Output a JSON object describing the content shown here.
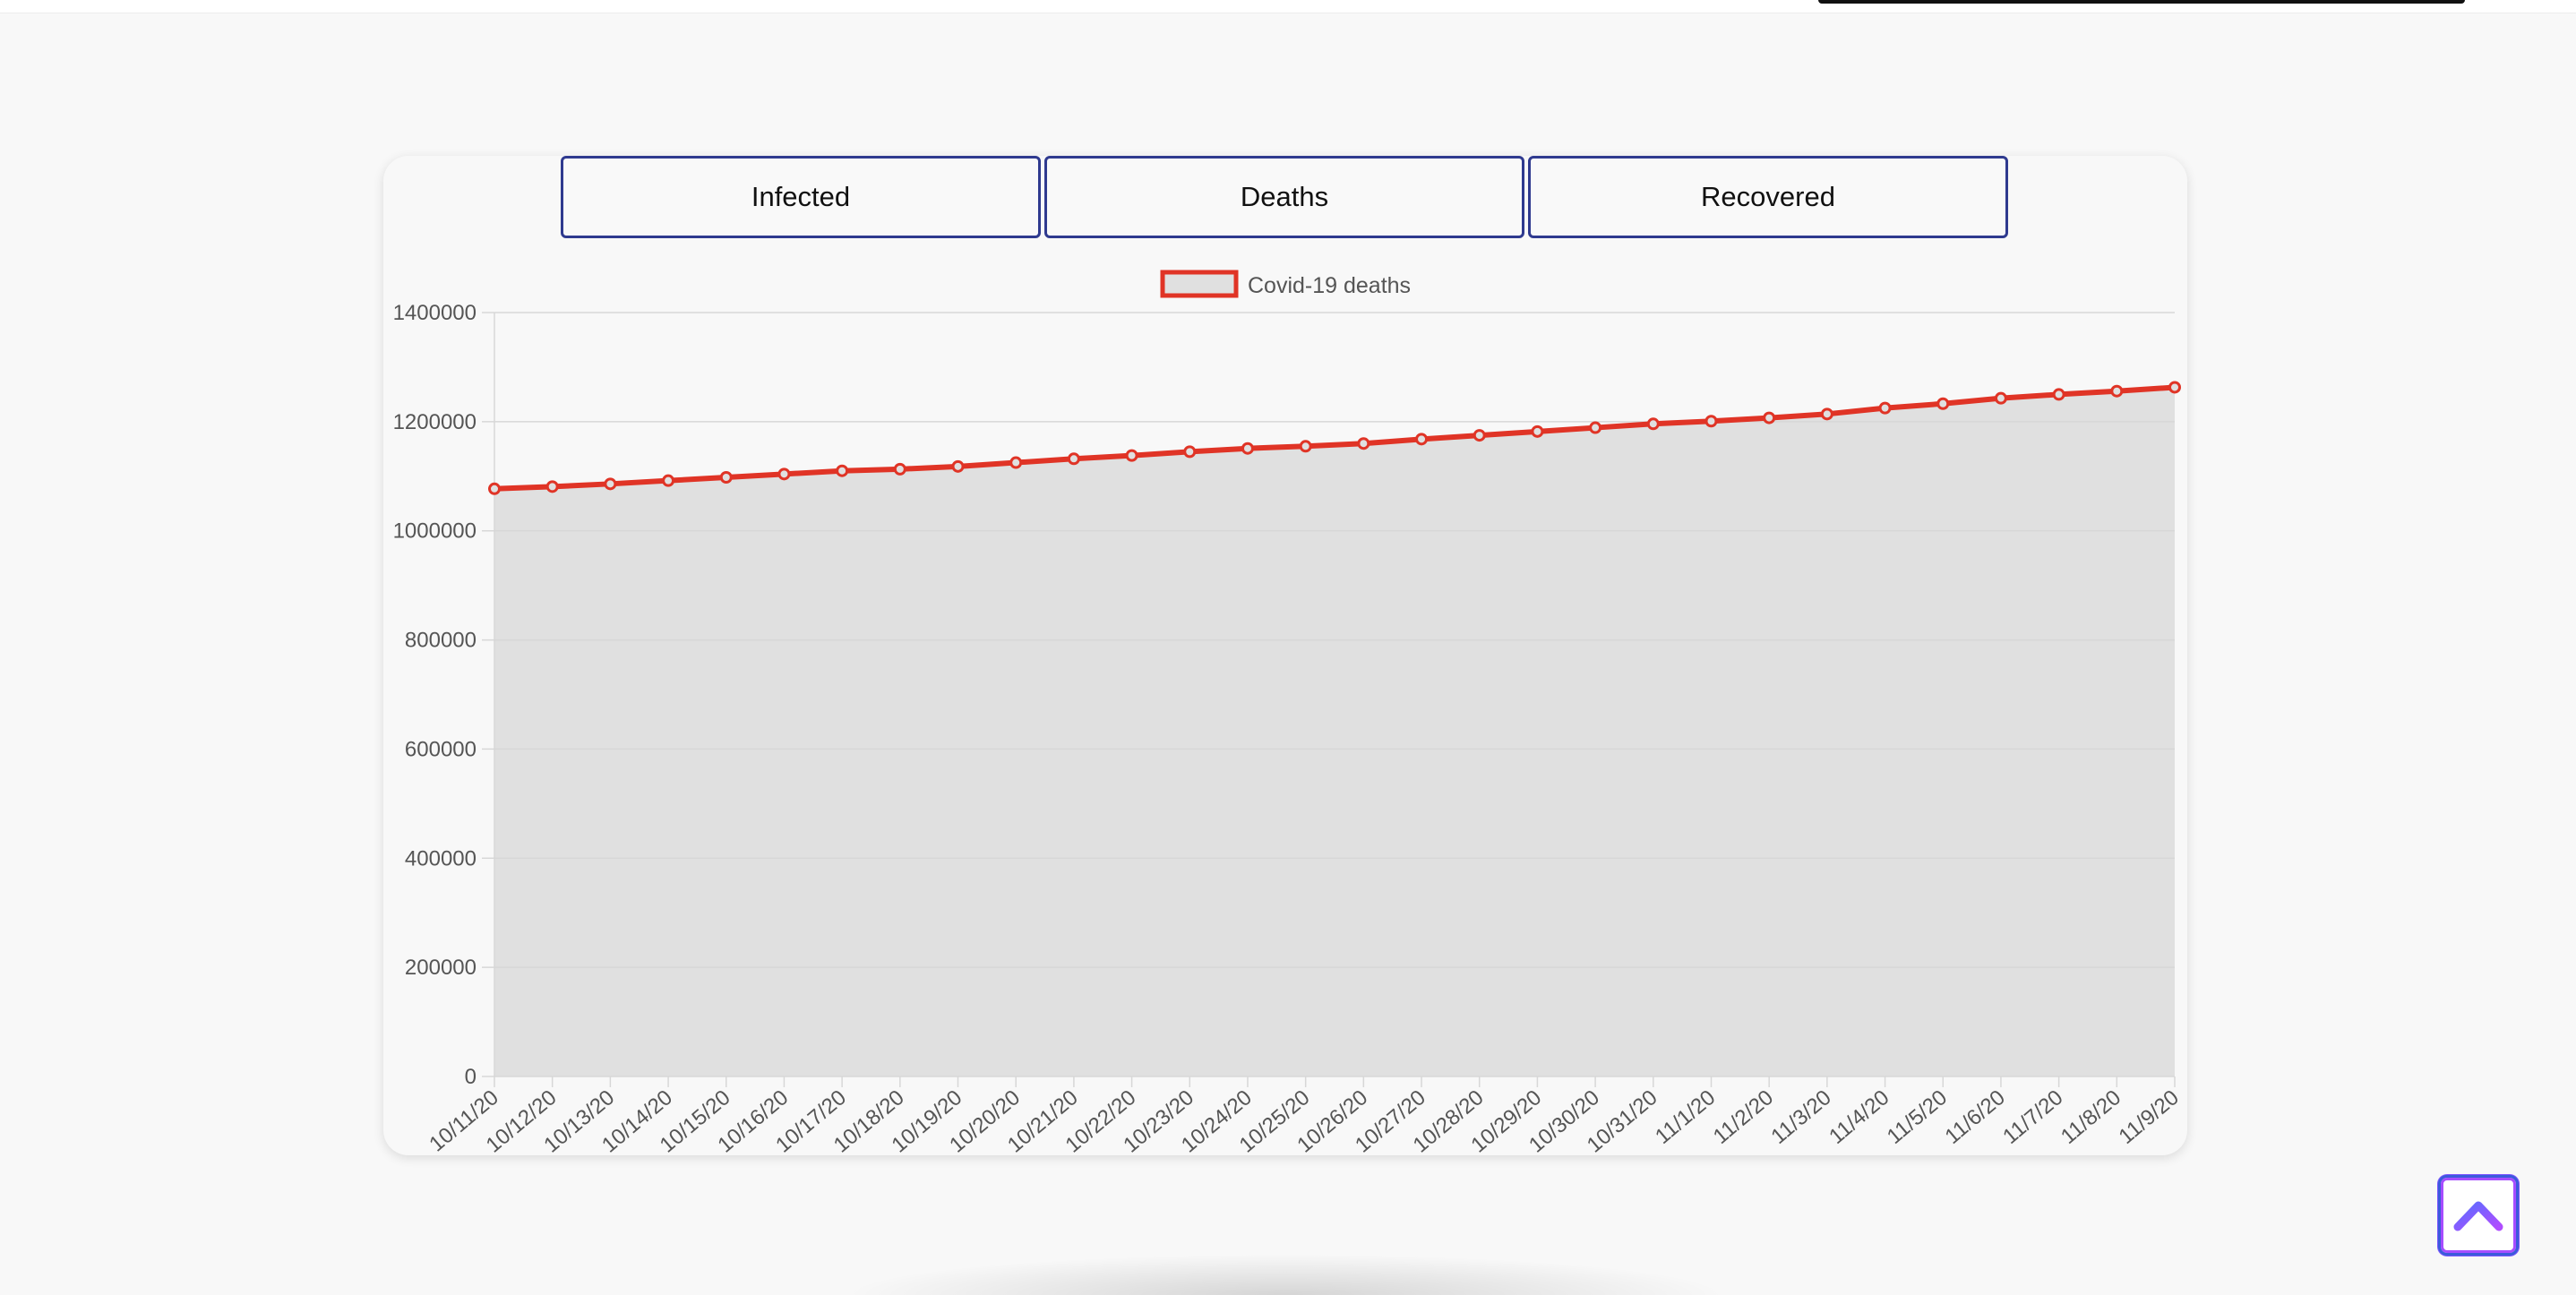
{
  "tabs": {
    "infected": "Infected",
    "deaths": "Deaths",
    "recovered": "Recovered"
  },
  "colors": {
    "line": "#e03426",
    "fill": "#e0e0e0",
    "grid": "#d7d7d7",
    "tab_border": "#2f3a8f",
    "scroll_button": "#6c4dff"
  },
  "scroll_top_icon": "chevron-up-icon",
  "chart_data": {
    "type": "area",
    "title": "",
    "xlabel": "",
    "ylabel": "",
    "legend_position": "top-center",
    "grid": true,
    "ylim": [
      0,
      1400000
    ],
    "yticks": [
      "0",
      "200000",
      "400000",
      "600000",
      "800000",
      "1000000",
      "1200000",
      "1400000"
    ],
    "x": [
      "10/11/20",
      "10/12/20",
      "10/13/20",
      "10/14/20",
      "10/15/20",
      "10/16/20",
      "10/17/20",
      "10/18/20",
      "10/19/20",
      "10/20/20",
      "10/21/20",
      "10/22/20",
      "10/23/20",
      "10/24/20",
      "10/25/20",
      "10/26/20",
      "10/27/20",
      "10/28/20",
      "10/29/20",
      "10/30/20",
      "10/31/20",
      "11/1/20",
      "11/2/20",
      "11/3/20",
      "11/4/20",
      "11/5/20",
      "11/6/20",
      "11/7/20",
      "11/8/20",
      "11/9/20"
    ],
    "series": [
      {
        "name": "Covid-19 deaths",
        "values": [
          1077000,
          1081000,
          1086000,
          1092000,
          1098000,
          1104000,
          1110000,
          1113000,
          1118000,
          1125000,
          1132000,
          1138000,
          1145000,
          1151000,
          1155000,
          1160000,
          1168000,
          1175000,
          1182000,
          1189000,
          1196000,
          1201000,
          1207000,
          1214000,
          1225000,
          1233000,
          1243000,
          1250000,
          1256000,
          1263000
        ]
      }
    ]
  }
}
